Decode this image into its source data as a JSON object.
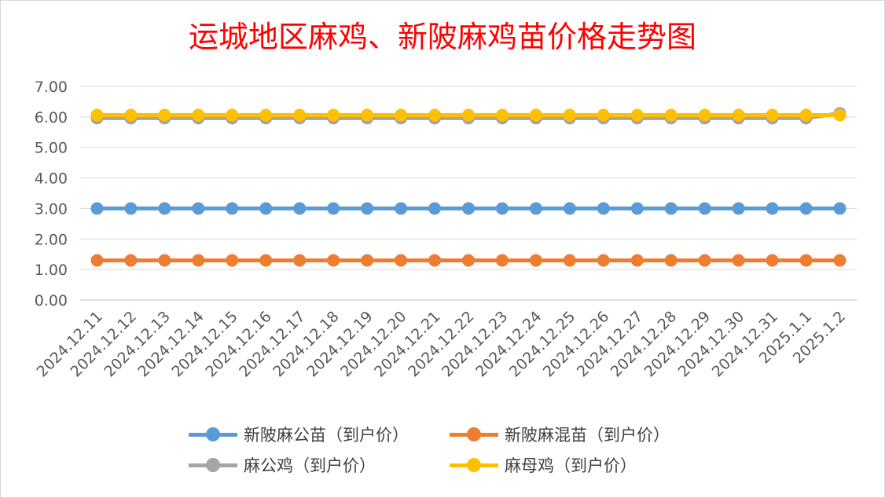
{
  "chart_data": {
    "type": "line",
    "title": "运城地区麻鸡、新陂麻鸡苗价格走势图",
    "x": [
      "2024.12.11",
      "2024.12.12",
      "2024.12.13",
      "2024.12.14",
      "2024.12.15",
      "2024.12.16",
      "2024.12.17",
      "2024.12.18",
      "2024.12.19",
      "2024.12.20",
      "2024.12.21",
      "2024.12.22",
      "2024.12.23",
      "2024.12.24",
      "2024.12.25",
      "2024.12.26",
      "2024.12.27",
      "2024.12.28",
      "2024.12.29",
      "2024.12.30",
      "2024.12.31",
      "2025.1.1",
      "2025.1.2"
    ],
    "series": [
      {
        "name": "新陂麻公苗（到户价）",
        "color": "#5b9bd5",
        "values": [
          3.0,
          3.0,
          3.0,
          3.0,
          3.0,
          3.0,
          3.0,
          3.0,
          3.0,
          3.0,
          3.0,
          3.0,
          3.0,
          3.0,
          3.0,
          3.0,
          3.0,
          3.0,
          3.0,
          3.0,
          3.0,
          3.0,
          3.0
        ]
      },
      {
        "name": "新陂麻混苗（到户价）",
        "color": "#ed7d31",
        "values": [
          1.3,
          1.3,
          1.3,
          1.3,
          1.3,
          1.3,
          1.3,
          1.3,
          1.3,
          1.3,
          1.3,
          1.3,
          1.3,
          1.3,
          1.3,
          1.3,
          1.3,
          1.3,
          1.3,
          1.3,
          1.3,
          1.3,
          1.3
        ]
      },
      {
        "name": "麻公鸡（到户价）",
        "color": "#a5a5a5",
        "values": [
          5.96,
          5.96,
          5.96,
          5.96,
          5.96,
          5.96,
          5.96,
          5.96,
          5.96,
          5.96,
          5.96,
          5.96,
          5.96,
          5.96,
          5.96,
          5.96,
          5.96,
          5.96,
          5.96,
          5.96,
          5.96,
          5.96,
          6.12
        ]
      },
      {
        "name": "麻母鸡（到户价）",
        "color": "#ffc000",
        "values": [
          6.06,
          6.06,
          6.06,
          6.06,
          6.06,
          6.06,
          6.06,
          6.06,
          6.06,
          6.06,
          6.06,
          6.06,
          6.06,
          6.06,
          6.06,
          6.06,
          6.06,
          6.06,
          6.06,
          6.06,
          6.06,
          6.06,
          6.06
        ]
      }
    ],
    "ylim": [
      0,
      7
    ],
    "yticks": [
      "0.00",
      "1.00",
      "2.00",
      "3.00",
      "4.00",
      "5.00",
      "6.00",
      "7.00"
    ],
    "grid": true,
    "legend_position": "bottom"
  }
}
